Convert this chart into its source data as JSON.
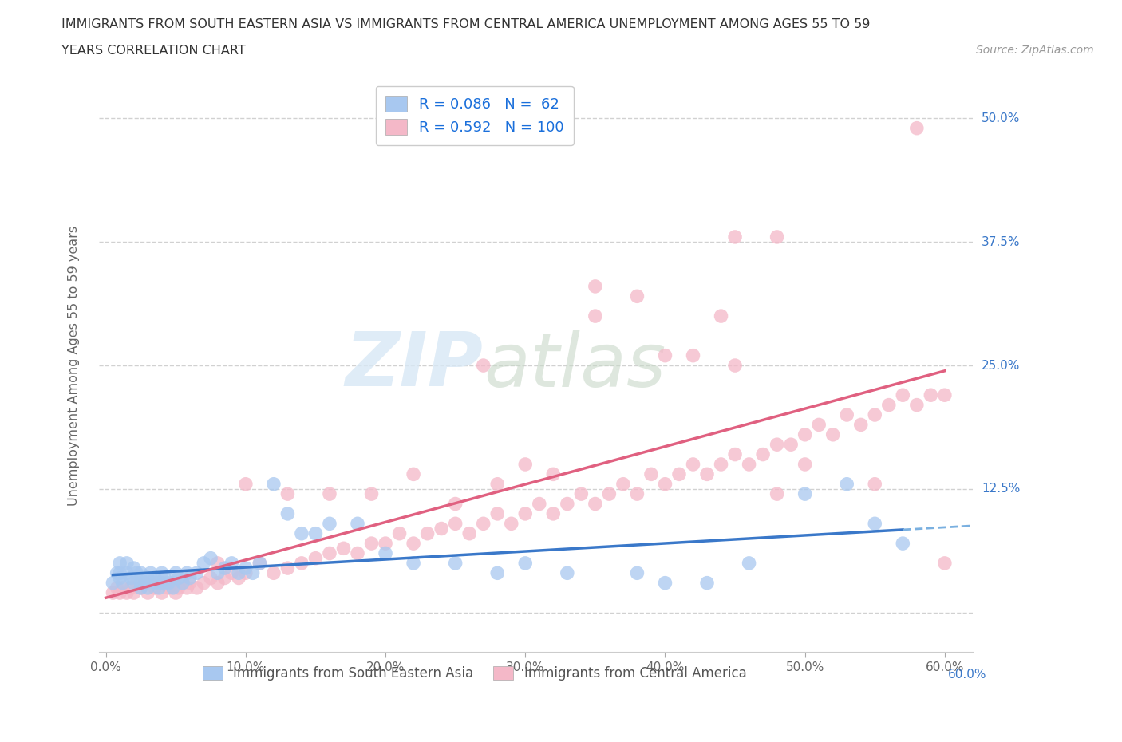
{
  "title_line1": "IMMIGRANTS FROM SOUTH EASTERN ASIA VS IMMIGRANTS FROM CENTRAL AMERICA UNEMPLOYMENT AMONG AGES 55 TO 59",
  "title_line2": "YEARS CORRELATION CHART",
  "source": "Source: ZipAtlas.com",
  "ylabel": "Unemployment Among Ages 55 to 59 years",
  "xlim": [
    -0.005,
    0.62
  ],
  "ylim": [
    -0.04,
    0.54
  ],
  "xticks": [
    0.0,
    0.1,
    0.2,
    0.3,
    0.4,
    0.5,
    0.6
  ],
  "xticklabels": [
    "0.0%",
    "10.0%",
    "20.0%",
    "30.0%",
    "40.0%",
    "50.0%",
    "60.0%"
  ],
  "yticks": [
    0.0,
    0.125,
    0.25,
    0.375,
    0.5
  ],
  "blue_R": 0.086,
  "blue_N": 62,
  "pink_R": 0.592,
  "pink_N": 100,
  "blue_color": "#a8c8f0",
  "pink_color": "#f4b8c8",
  "blue_line_color": "#3a78c9",
  "blue_dashed_color": "#7ab0e0",
  "pink_line_color": "#e06080",
  "watermark_zip": "ZIP",
  "watermark_atlas": "atlas",
  "legend_label_blue": "Immigrants from South Eastern Asia",
  "legend_label_pink": "Immigrants from Central America",
  "right_labels": [
    [
      0.5,
      "50.0%"
    ],
    [
      0.375,
      "37.5%"
    ],
    [
      0.25,
      "25.0%"
    ],
    [
      0.125,
      "12.5%"
    ]
  ],
  "bottom_right_label": "60.0%",
  "blue_scatter_x": [
    0.005,
    0.008,
    0.01,
    0.01,
    0.01,
    0.012,
    0.015,
    0.015,
    0.018,
    0.02,
    0.02,
    0.022,
    0.025,
    0.025,
    0.025,
    0.028,
    0.03,
    0.03,
    0.032,
    0.035,
    0.035,
    0.038,
    0.04,
    0.04,
    0.042,
    0.045,
    0.048,
    0.05,
    0.052,
    0.055,
    0.058,
    0.06,
    0.065,
    0.07,
    0.075,
    0.08,
    0.085,
    0.09,
    0.095,
    0.1,
    0.105,
    0.11,
    0.12,
    0.13,
    0.14,
    0.15,
    0.16,
    0.18,
    0.2,
    0.22,
    0.25,
    0.28,
    0.3,
    0.33,
    0.38,
    0.4,
    0.43,
    0.46,
    0.5,
    0.53,
    0.55,
    0.57
  ],
  "blue_scatter_y": [
    0.03,
    0.04,
    0.035,
    0.04,
    0.05,
    0.03,
    0.04,
    0.05,
    0.035,
    0.03,
    0.045,
    0.04,
    0.025,
    0.03,
    0.04,
    0.03,
    0.025,
    0.035,
    0.04,
    0.03,
    0.035,
    0.025,
    0.03,
    0.04,
    0.035,
    0.03,
    0.025,
    0.04,
    0.035,
    0.03,
    0.04,
    0.035,
    0.04,
    0.05,
    0.055,
    0.04,
    0.045,
    0.05,
    0.04,
    0.045,
    0.04,
    0.05,
    0.13,
    0.1,
    0.08,
    0.08,
    0.09,
    0.09,
    0.06,
    0.05,
    0.05,
    0.04,
    0.05,
    0.04,
    0.04,
    0.03,
    0.03,
    0.05,
    0.12,
    0.13,
    0.09,
    0.07
  ],
  "pink_scatter_x": [
    0.005,
    0.008,
    0.01,
    0.012,
    0.015,
    0.018,
    0.02,
    0.022,
    0.025,
    0.028,
    0.03,
    0.032,
    0.035,
    0.038,
    0.04,
    0.042,
    0.045,
    0.048,
    0.05,
    0.052,
    0.055,
    0.058,
    0.06,
    0.065,
    0.07,
    0.075,
    0.08,
    0.085,
    0.09,
    0.095,
    0.1,
    0.11,
    0.12,
    0.13,
    0.14,
    0.15,
    0.16,
    0.17,
    0.18,
    0.19,
    0.2,
    0.21,
    0.22,
    0.23,
    0.24,
    0.25,
    0.26,
    0.27,
    0.28,
    0.29,
    0.3,
    0.31,
    0.32,
    0.33,
    0.34,
    0.35,
    0.36,
    0.37,
    0.38,
    0.39,
    0.4,
    0.41,
    0.42,
    0.43,
    0.44,
    0.45,
    0.46,
    0.47,
    0.48,
    0.49,
    0.5,
    0.51,
    0.52,
    0.53,
    0.54,
    0.55,
    0.56,
    0.57,
    0.58,
    0.59,
    0.6,
    0.6,
    0.55,
    0.5,
    0.48,
    0.45,
    0.45,
    0.42,
    0.38,
    0.35,
    0.32,
    0.3,
    0.28,
    0.25,
    0.22,
    0.19,
    0.16,
    0.13,
    0.1,
    0.08
  ],
  "pink_scatter_y": [
    0.02,
    0.025,
    0.02,
    0.025,
    0.02,
    0.025,
    0.02,
    0.03,
    0.025,
    0.03,
    0.02,
    0.03,
    0.025,
    0.03,
    0.02,
    0.03,
    0.025,
    0.03,
    0.02,
    0.025,
    0.03,
    0.025,
    0.03,
    0.025,
    0.03,
    0.035,
    0.03,
    0.035,
    0.04,
    0.035,
    0.04,
    0.05,
    0.04,
    0.045,
    0.05,
    0.055,
    0.06,
    0.065,
    0.06,
    0.07,
    0.07,
    0.08,
    0.07,
    0.08,
    0.085,
    0.09,
    0.08,
    0.09,
    0.1,
    0.09,
    0.1,
    0.11,
    0.1,
    0.11,
    0.12,
    0.11,
    0.12,
    0.13,
    0.12,
    0.14,
    0.13,
    0.14,
    0.15,
    0.14,
    0.15,
    0.16,
    0.15,
    0.16,
    0.17,
    0.17,
    0.18,
    0.19,
    0.18,
    0.2,
    0.19,
    0.2,
    0.21,
    0.22,
    0.21,
    0.22,
    0.22,
    0.05,
    0.13,
    0.15,
    0.12,
    0.25,
    0.38,
    0.26,
    0.32,
    0.3,
    0.14,
    0.15,
    0.13,
    0.11,
    0.14,
    0.12,
    0.12,
    0.12,
    0.13,
    0.05
  ],
  "pink_outlier_x": [
    0.58,
    0.48,
    0.44,
    0.4,
    0.35,
    0.27
  ],
  "pink_outlier_y": [
    0.49,
    0.38,
    0.3,
    0.26,
    0.33,
    0.25
  ]
}
